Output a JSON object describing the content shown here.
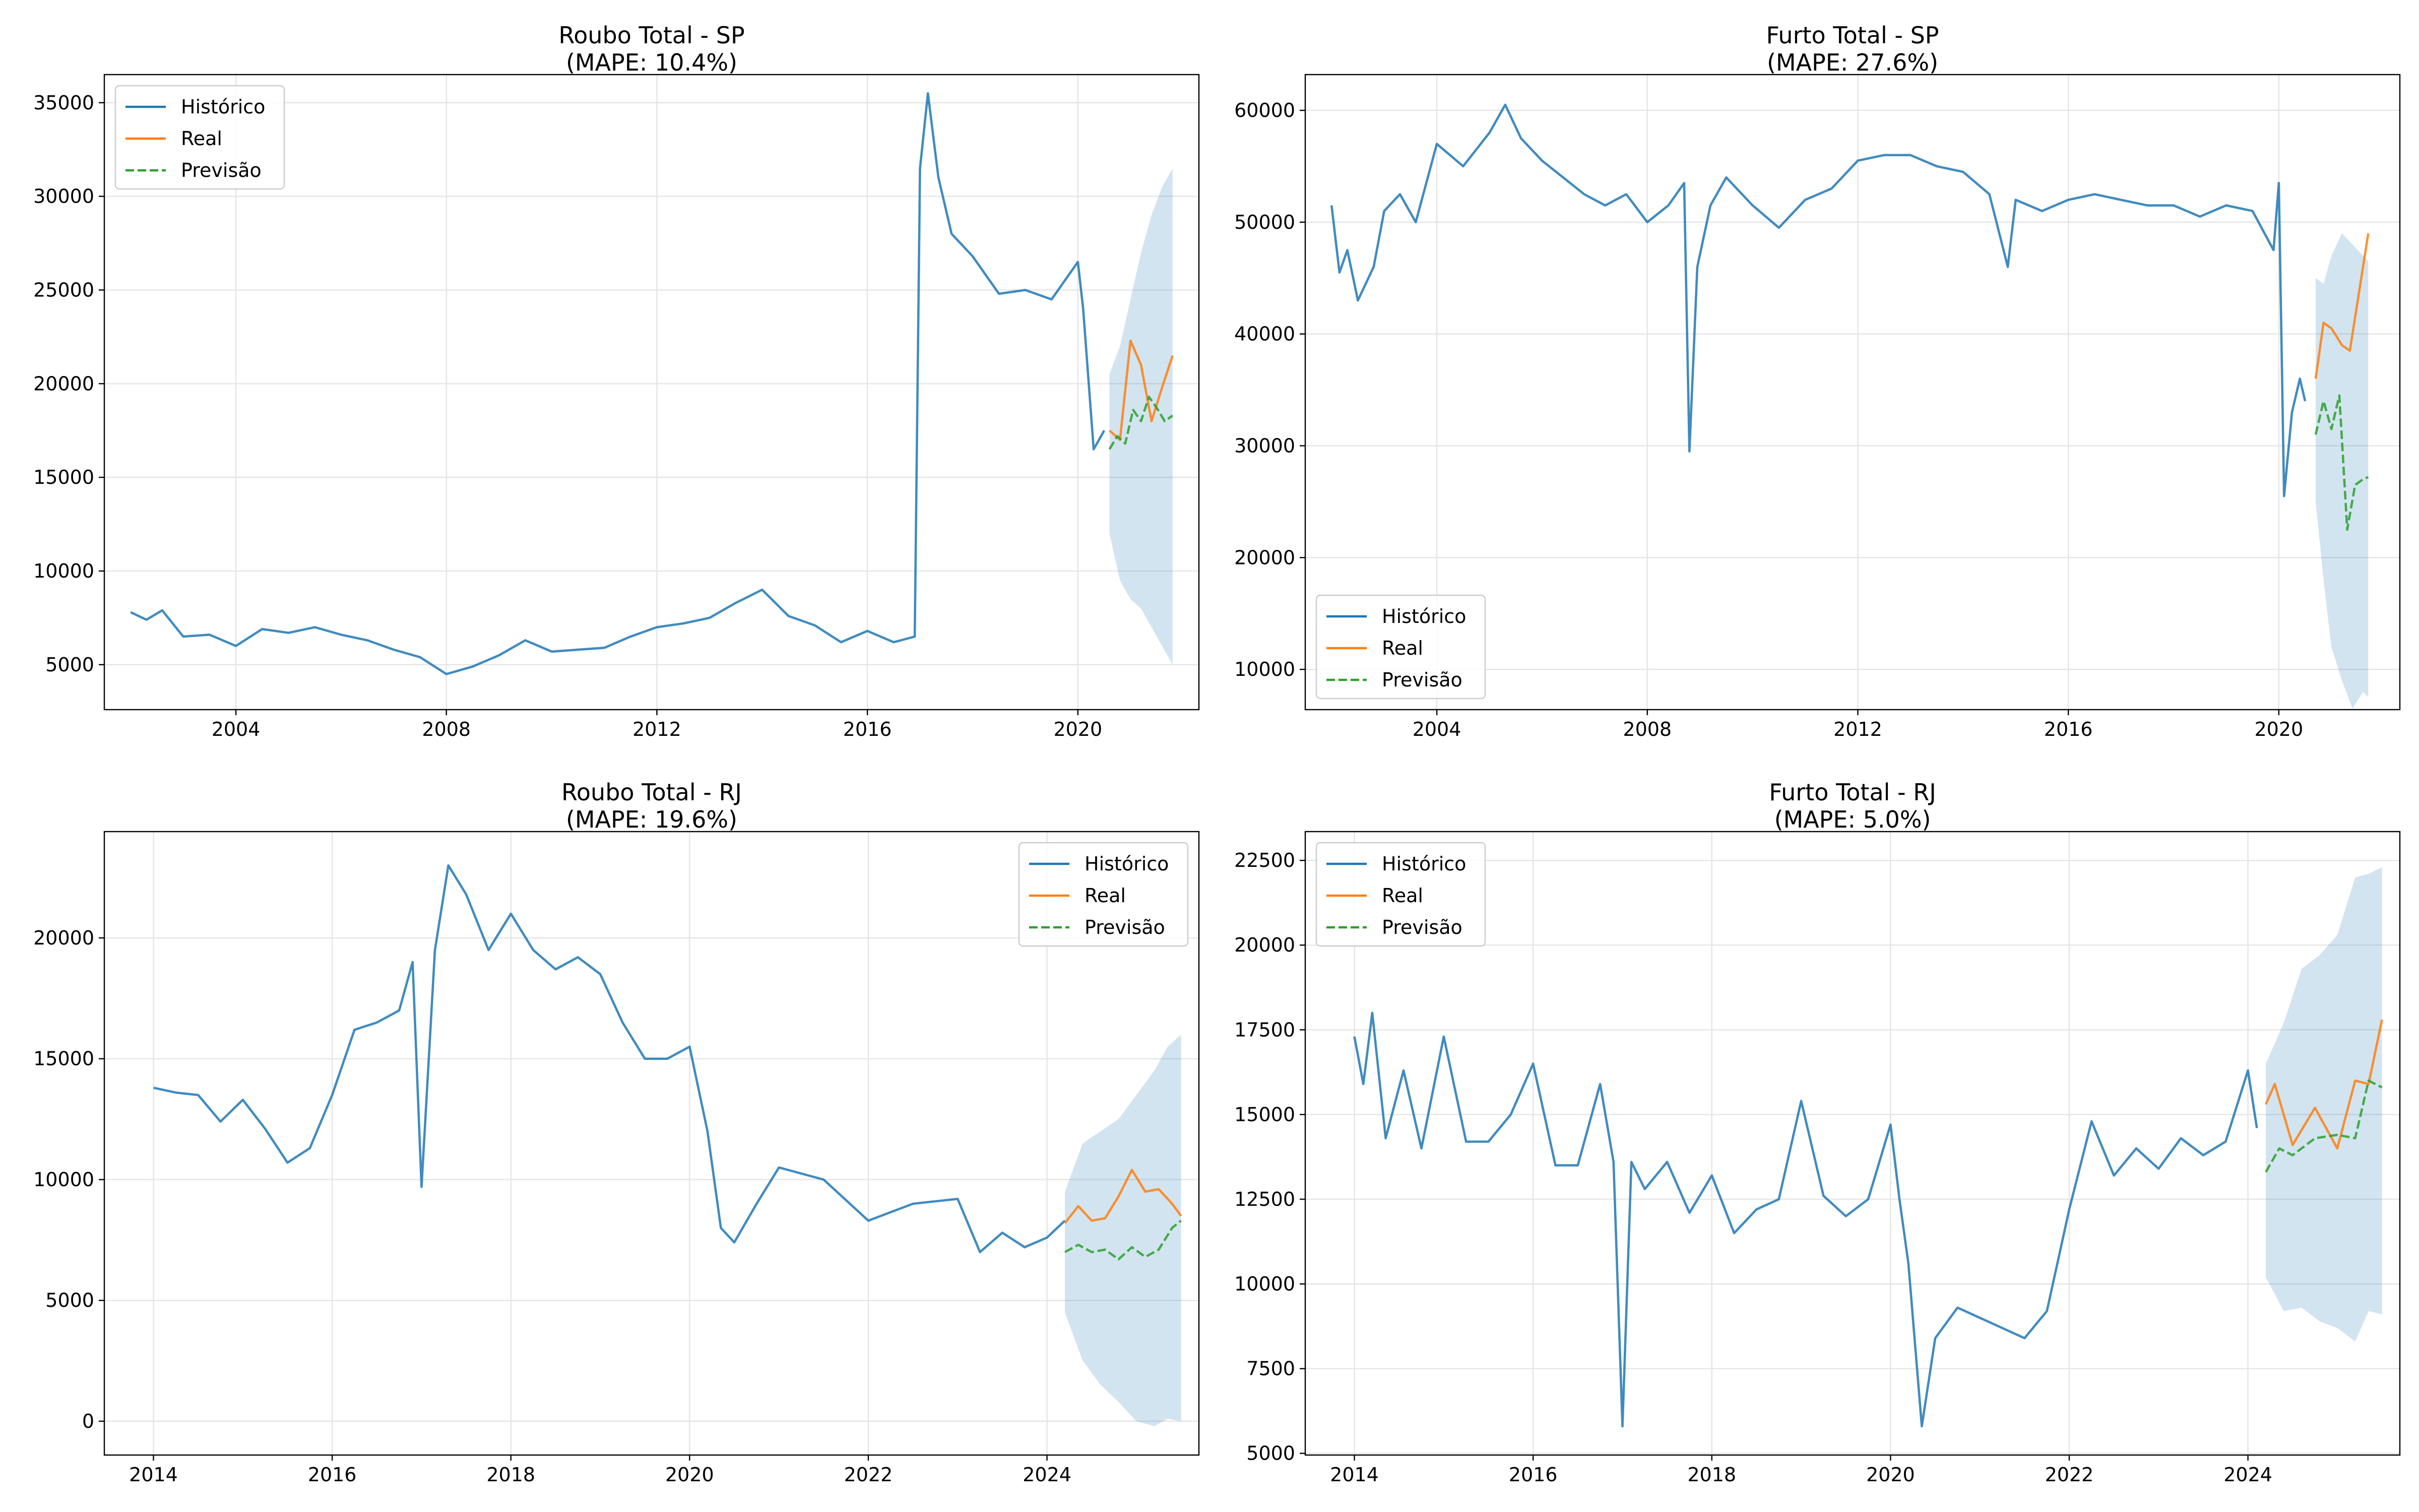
{
  "colors": {
    "historico": "#1f77b4",
    "real": "#ff7f0e",
    "previsao": "#2ca02c",
    "band": "#1f77b4"
  },
  "chart_data": [
    {
      "type": "line",
      "title": "Roubo Total - SP",
      "subtitle": "(MAPE: 10.4%)",
      "legend": "top-left",
      "grid": true,
      "xlim": [
        2001.5,
        2022.3
      ],
      "ylim": [
        2600,
        36500
      ],
      "xticks": [
        {
          "v": 2004,
          "label": "2004"
        },
        {
          "v": 2008,
          "label": "2008"
        },
        {
          "v": 2012,
          "label": "2012"
        },
        {
          "v": 2016,
          "label": "2016"
        },
        {
          "v": 2020,
          "label": "2020"
        }
      ],
      "yticks": [
        {
          "v": 5000,
          "label": "5000"
        },
        {
          "v": 10000,
          "label": "10000"
        },
        {
          "v": 15000,
          "label": "15000"
        },
        {
          "v": 20000,
          "label": "20000"
        },
        {
          "v": 25000,
          "label": "25000"
        },
        {
          "v": 30000,
          "label": "30000"
        },
        {
          "v": 35000,
          "label": "35000"
        }
      ],
      "series": [
        {
          "name": "Histórico",
          "role": "historico",
          "x": [
            2002.0,
            2002.3,
            2002.6,
            2003.0,
            2003.5,
            2004.0,
            2004.5,
            2005.0,
            2005.5,
            2006.0,
            2006.5,
            2007.0,
            2007.5,
            2008.0,
            2008.5,
            2009.0,
            2009.5,
            2010.0,
            2010.5,
            2011.0,
            2011.5,
            2012.0,
            2012.5,
            2013.0,
            2013.5,
            2014.0,
            2014.5,
            2015.0,
            2015.5,
            2016.0,
            2016.5,
            2016.9,
            2017.0,
            2017.15,
            2017.35,
            2017.6,
            2018.0,
            2018.5,
            2019.0,
            2019.5,
            2020.0,
            2020.1,
            2020.3,
            2020.5
          ],
          "y": [
            7800,
            7400,
            7900,
            6500,
            6600,
            6000,
            6900,
            6700,
            7000,
            6600,
            6300,
            5800,
            5400,
            4500,
            4900,
            5500,
            6300,
            5700,
            5800,
            5900,
            6500,
            7000,
            7200,
            7500,
            8300,
            9000,
            7600,
            7100,
            6200,
            6800,
            6200,
            6500,
            31500,
            35500,
            31000,
            28000,
            26800,
            24800,
            25000,
            24500,
            26500,
            24000,
            16500,
            17500
          ]
        },
        {
          "name": "Real",
          "role": "real",
          "x": [
            2020.6,
            2020.8,
            2021.0,
            2021.2,
            2021.4,
            2021.6,
            2021.8
          ],
          "y": [
            17500,
            17000,
            22300,
            21000,
            18000,
            19800,
            21500
          ]
        },
        {
          "name": "Previsão",
          "role": "previsao",
          "x": [
            2020.6,
            2020.75,
            2020.9,
            2021.05,
            2021.2,
            2021.35,
            2021.5,
            2021.65,
            2021.8
          ],
          "y": [
            16500,
            17200,
            16800,
            18600,
            18000,
            19300,
            18700,
            18000,
            18300
          ]
        },
        {
          "name": "",
          "role": "band",
          "x": [
            2020.6,
            2020.8,
            2021.0,
            2021.2,
            2021.4,
            2021.6,
            2021.8
          ],
          "lo": [
            12000,
            9500,
            8500,
            8000,
            7000,
            6000,
            5000
          ],
          "hi": [
            20500,
            22000,
            24500,
            27000,
            29000,
            30500,
            31500
          ]
        }
      ]
    },
    {
      "type": "line",
      "title": "Furto Total - SP",
      "subtitle": "(MAPE: 27.6%)",
      "legend": "bottom-left",
      "grid": true,
      "xlim": [
        2001.5,
        2022.3
      ],
      "ylim": [
        6400,
        63200
      ],
      "xticks": [
        {
          "v": 2004,
          "label": "2004"
        },
        {
          "v": 2008,
          "label": "2008"
        },
        {
          "v": 2012,
          "label": "2012"
        },
        {
          "v": 2016,
          "label": "2016"
        },
        {
          "v": 2020,
          "label": "2020"
        }
      ],
      "yticks": [
        {
          "v": 10000,
          "label": "10000"
        },
        {
          "v": 20000,
          "label": "20000"
        },
        {
          "v": 30000,
          "label": "30000"
        },
        {
          "v": 40000,
          "label": "40000"
        },
        {
          "v": 50000,
          "label": "50000"
        },
        {
          "v": 60000,
          "label": "60000"
        }
      ],
      "series": [
        {
          "name": "Histórico",
          "role": "historico",
          "x": [
            2002.0,
            2002.15,
            2002.3,
            2002.5,
            2002.8,
            2003.0,
            2003.3,
            2003.6,
            2004.0,
            2004.5,
            2005.0,
            2005.3,
            2005.6,
            2006.0,
            2006.4,
            2006.8,
            2007.2,
            2007.6,
            2008.0,
            2008.4,
            2008.7,
            2008.8,
            2008.95,
            2009.2,
            2009.5,
            2010.0,
            2010.5,
            2011.0,
            2011.5,
            2012.0,
            2012.5,
            2013.0,
            2013.5,
            2014.0,
            2014.5,
            2014.85,
            2015.0,
            2015.5,
            2016.0,
            2016.5,
            2017.0,
            2017.5,
            2018.0,
            2018.5,
            2019.0,
            2019.5,
            2019.9,
            2020.0,
            2020.1,
            2020.25,
            2020.4,
            2020.5
          ],
          "y": [
            51500,
            45500,
            47500,
            43000,
            46000,
            51000,
            52500,
            50000,
            57000,
            55000,
            58000,
            60500,
            57500,
            55500,
            54000,
            52500,
            51500,
            52500,
            50000,
            51500,
            53500,
            29500,
            46000,
            51500,
            54000,
            51500,
            49500,
            52000,
            53000,
            55500,
            56000,
            56000,
            55000,
            54500,
            52500,
            46000,
            52000,
            51000,
            52000,
            52500,
            52000,
            51500,
            51500,
            50500,
            51500,
            51000,
            47500,
            53500,
            25500,
            33000,
            36000,
            34000
          ]
        },
        {
          "name": "Real",
          "role": "real",
          "x": [
            2020.7,
            2020.85,
            2021.0,
            2021.2,
            2021.35,
            2021.5,
            2021.7
          ],
          "y": [
            36000,
            41000,
            40500,
            39000,
            38500,
            43000,
            49000
          ]
        },
        {
          "name": "Previsão",
          "role": "previsao",
          "x": [
            2020.7,
            2020.85,
            2021.0,
            2021.15,
            2021.3,
            2021.45,
            2021.6,
            2021.7
          ],
          "y": [
            31000,
            34000,
            31500,
            34500,
            22500,
            26500,
            27000,
            27200
          ]
        },
        {
          "name": "",
          "role": "band",
          "x": [
            2020.7,
            2020.85,
            2021.0,
            2021.2,
            2021.4,
            2021.6,
            2021.7
          ],
          "lo": [
            25000,
            18000,
            12000,
            9000,
            6500,
            8000,
            7500
          ],
          "hi": [
            45000,
            44500,
            47000,
            49000,
            48000,
            47000,
            46500
          ]
        }
      ]
    },
    {
      "type": "line",
      "title": "Roubo Total - RJ",
      "subtitle": "(MAPE: 19.6%)",
      "legend": "top-right",
      "grid": true,
      "xlim": [
        2013.45,
        2025.7
      ],
      "ylim": [
        -1400,
        24400
      ],
      "xticks": [
        {
          "v": 2014,
          "label": "2014"
        },
        {
          "v": 2016,
          "label": "2016"
        },
        {
          "v": 2018,
          "label": "2018"
        },
        {
          "v": 2020,
          "label": "2020"
        },
        {
          "v": 2022,
          "label": "2022"
        },
        {
          "v": 2024,
          "label": "2024"
        }
      ],
      "yticks": [
        {
          "v": 0,
          "label": "0"
        },
        {
          "v": 5000,
          "label": "5000"
        },
        {
          "v": 10000,
          "label": "10000"
        },
        {
          "v": 15000,
          "label": "15000"
        },
        {
          "v": 20000,
          "label": "20000"
        }
      ],
      "series": [
        {
          "name": "Histórico",
          "role": "historico",
          "x": [
            2014.0,
            2014.25,
            2014.5,
            2014.75,
            2015.0,
            2015.25,
            2015.5,
            2015.75,
            2016.0,
            2016.25,
            2016.5,
            2016.75,
            2016.9,
            2017.0,
            2017.15,
            2017.3,
            2017.5,
            2017.75,
            2018.0,
            2018.25,
            2018.5,
            2018.75,
            2019.0,
            2019.25,
            2019.5,
            2019.75,
            2020.0,
            2020.2,
            2020.35,
            2020.5,
            2020.75,
            2021.0,
            2021.5,
            2022.0,
            2022.5,
            2023.0,
            2023.25,
            2023.5,
            2023.75,
            2024.0,
            2024.2
          ],
          "y": [
            13800,
            13600,
            13500,
            12400,
            13300,
            12100,
            10700,
            11300,
            13500,
            16200,
            16500,
            17000,
            19000,
            9700,
            19500,
            23000,
            21800,
            19500,
            21000,
            19500,
            18700,
            19200,
            18500,
            16500,
            15000,
            15000,
            15500,
            12000,
            8000,
            7400,
            9000,
            10500,
            10000,
            8300,
            9000,
            9200,
            7000,
            7800,
            7200,
            7600,
            8300
          ]
        },
        {
          "name": "Real",
          "role": "real",
          "x": [
            2024.2,
            2024.35,
            2024.5,
            2024.65,
            2024.8,
            2024.95,
            2025.1,
            2025.25,
            2025.4,
            2025.5
          ],
          "y": [
            8200,
            8900,
            8300,
            8400,
            9300,
            10400,
            9500,
            9600,
            9000,
            8500
          ]
        },
        {
          "name": "Previsão",
          "role": "previsao",
          "x": [
            2024.2,
            2024.35,
            2024.5,
            2024.65,
            2024.8,
            2024.95,
            2025.1,
            2025.25,
            2025.4,
            2025.5
          ],
          "y": [
            7000,
            7300,
            7000,
            7100,
            6700,
            7200,
            6800,
            7100,
            8000,
            8300
          ]
        },
        {
          "name": "",
          "role": "band",
          "x": [
            2024.2,
            2024.4,
            2024.6,
            2024.8,
            2025.0,
            2025.2,
            2025.35,
            2025.5
          ],
          "lo": [
            4500,
            2500,
            1500,
            800,
            0,
            -200,
            100,
            0
          ],
          "hi": [
            9500,
            11500,
            12000,
            12500,
            13500,
            14500,
            15500,
            16000
          ]
        }
      ]
    },
    {
      "type": "line",
      "title": "Furto Total - RJ",
      "subtitle": "(MAPE: 5.0%)",
      "legend": "top-left",
      "grid": true,
      "xlim": [
        2013.45,
        2025.7
      ],
      "ylim": [
        4950,
        23350
      ],
      "xticks": [
        {
          "v": 2014,
          "label": "2014"
        },
        {
          "v": 2016,
          "label": "2016"
        },
        {
          "v": 2018,
          "label": "2018"
        },
        {
          "v": 2020,
          "label": "2020"
        },
        {
          "v": 2022,
          "label": "2022"
        },
        {
          "v": 2024,
          "label": "2024"
        }
      ],
      "yticks": [
        {
          "v": 5000,
          "label": "5000"
        },
        {
          "v": 7500,
          "label": "7500"
        },
        {
          "v": 10000,
          "label": "10000"
        },
        {
          "v": 12500,
          "label": "12500"
        },
        {
          "v": 15000,
          "label": "15000"
        },
        {
          "v": 17500,
          "label": "17500"
        },
        {
          "v": 20000,
          "label": "20000"
        },
        {
          "v": 22500,
          "label": "22500"
        }
      ],
      "series": [
        {
          "name": "Histórico",
          "role": "historico",
          "x": [
            2014.0,
            2014.1,
            2014.2,
            2014.35,
            2014.55,
            2014.75,
            2015.0,
            2015.25,
            2015.5,
            2015.75,
            2016.0,
            2016.25,
            2016.5,
            2016.75,
            2016.9,
            2017.0,
            2017.1,
            2017.25,
            2017.5,
            2017.75,
            2018.0,
            2018.25,
            2018.5,
            2018.75,
            2019.0,
            2019.25,
            2019.5,
            2019.75,
            2020.0,
            2020.1,
            2020.2,
            2020.35,
            2020.5,
            2020.75,
            2021.0,
            2021.5,
            2021.75,
            2022.0,
            2022.25,
            2022.5,
            2022.75,
            2023.0,
            2023.25,
            2023.5,
            2023.75,
            2024.0,
            2024.1
          ],
          "y": [
            17300,
            15900,
            18000,
            14300,
            16300,
            14000,
            17300,
            14200,
            14200,
            15000,
            16500,
            13500,
            13500,
            15900,
            13600,
            5800,
            13600,
            12800,
            13600,
            12100,
            13200,
            11500,
            12200,
            12500,
            15400,
            12600,
            12000,
            12500,
            14700,
            12500,
            10600,
            5800,
            8400,
            9300,
            9000,
            8400,
            9200,
            12200,
            14800,
            13200,
            14000,
            13400,
            14300,
            13800,
            14200,
            16300,
            14600
          ]
        },
        {
          "name": "Real",
          "role": "real",
          "x": [
            2024.2,
            2024.3,
            2024.5,
            2024.75,
            2025.0,
            2025.2,
            2025.35,
            2025.5
          ],
          "y": [
            15300,
            15900,
            14100,
            15200,
            14000,
            16000,
            15900,
            17800
          ]
        },
        {
          "name": "Previsão",
          "role": "previsao",
          "x": [
            2024.2,
            2024.35,
            2024.5,
            2024.75,
            2025.0,
            2025.2,
            2025.35,
            2025.5
          ],
          "y": [
            13300,
            14000,
            13800,
            14300,
            14400,
            14300,
            16000,
            15800
          ]
        },
        {
          "name": "",
          "role": "band",
          "x": [
            2024.2,
            2024.4,
            2024.6,
            2024.8,
            2025.0,
            2025.2,
            2025.35,
            2025.5
          ],
          "lo": [
            10200,
            9200,
            9300,
            8900,
            8700,
            8300,
            9200,
            9100
          ],
          "hi": [
            16500,
            17700,
            19300,
            19700,
            20300,
            22000,
            22100,
            22300
          ]
        }
      ]
    }
  ]
}
